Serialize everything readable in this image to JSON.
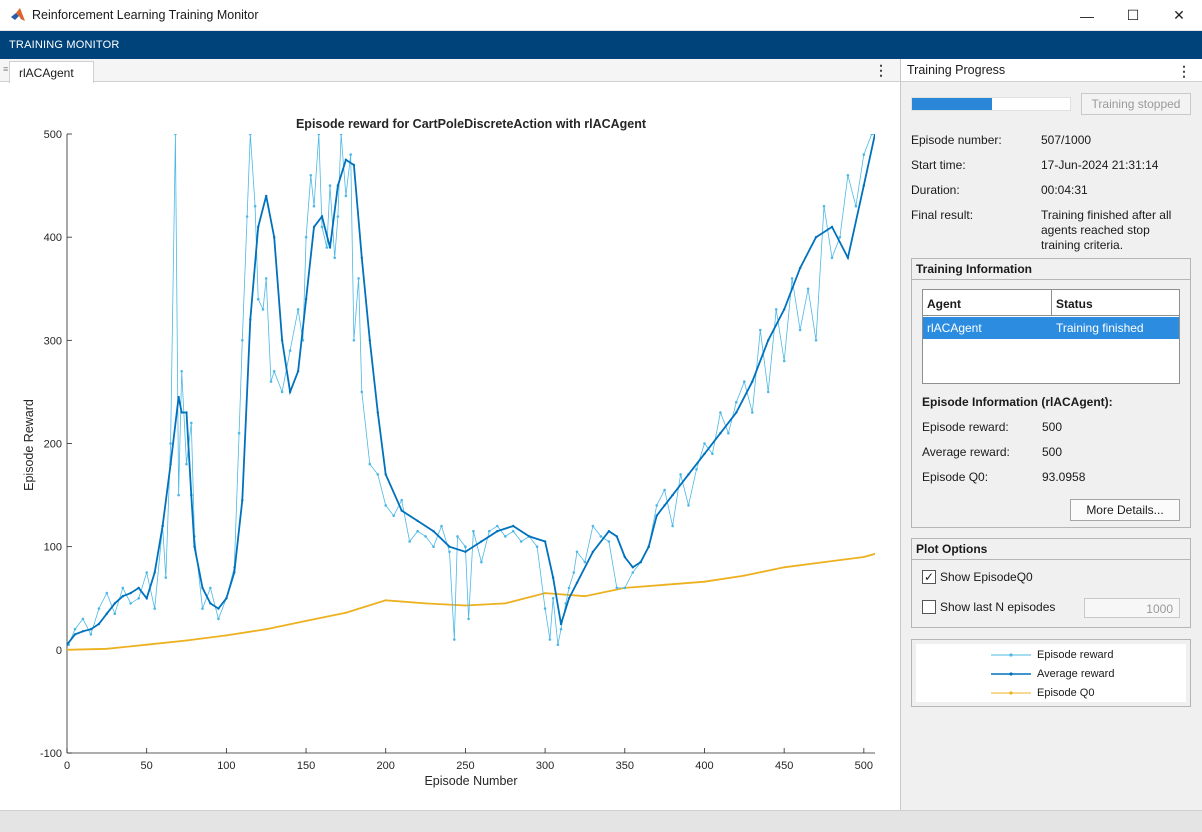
{
  "window": {
    "title": "Reinforcement Learning Training Monitor",
    "minimize": "—",
    "maximize": "☐",
    "close": "✕"
  },
  "toolstrip": {
    "tab": "TRAINING MONITOR"
  },
  "doc_tab": {
    "label": "rlACAgent"
  },
  "right_panel": {
    "header": "Training Progress",
    "progress": 0.507,
    "stop_button": "Training stopped",
    "info": [
      {
        "label": "Episode number:",
        "value": "507/1000"
      },
      {
        "label": "Start time:",
        "value": "17-Jun-2024 21:31:14"
      },
      {
        "label": "Duration:",
        "value": "00:04:31"
      },
      {
        "label": "Final result:",
        "value": "Training finished after all agents reached stop training criteria."
      }
    ],
    "training_information": {
      "title": "Training Information",
      "columns": [
        "Agent",
        "Status"
      ],
      "rows": [
        {
          "agent": "rlACAgent",
          "status": "Training finished"
        }
      ],
      "episode_title": "Episode Information (rlACAgent):",
      "episode_info": [
        {
          "label": "Episode reward:",
          "value": "500"
        },
        {
          "label": "Average reward:",
          "value": "500"
        },
        {
          "label": "Episode Q0:",
          "value": "93.0958"
        }
      ],
      "more_details": "More Details..."
    },
    "plot_options": {
      "title": "Plot Options",
      "show_q0": {
        "label": "Show EpisodeQ0",
        "checked": true
      },
      "show_last_n": {
        "label": "Show last N episodes",
        "checked": false
      },
      "n_value": "1000"
    },
    "legend": [
      {
        "name": "Episode reward",
        "color": "#4db8e6"
      },
      {
        "name": "Average reward",
        "color": "#0072bd"
      },
      {
        "name": "Episode Q0",
        "color": "#edb120"
      }
    ]
  },
  "chart_data": {
    "type": "line",
    "title": "Episode reward for CartPoleDiscreteAction with rlACAgent",
    "xlabel": "Episode Number",
    "ylabel": "Episode Reward",
    "xlim": [
      0,
      507
    ],
    "ylim": [
      -100,
      500
    ],
    "xticks": [
      0,
      50,
      100,
      150,
      200,
      250,
      300,
      350,
      400,
      450,
      500
    ],
    "yticks": [
      -100,
      0,
      100,
      200,
      300,
      400,
      500
    ],
    "grid": false,
    "series": [
      {
        "name": "Episode reward",
        "color": "#4db8e6",
        "x": [
          1,
          5,
          10,
          15,
          20,
          25,
          30,
          35,
          40,
          45,
          50,
          55,
          60,
          62,
          65,
          68,
          70,
          72,
          75,
          78,
          80,
          85,
          90,
          95,
          100,
          105,
          108,
          110,
          113,
          115,
          118,
          120,
          123,
          125,
          128,
          130,
          135,
          140,
          145,
          148,
          150,
          153,
          155,
          158,
          160,
          163,
          165,
          168,
          170,
          172,
          175,
          178,
          180,
          183,
          185,
          190,
          195,
          200,
          205,
          210,
          215,
          220,
          225,
          230,
          235,
          240,
          243,
          245,
          250,
          252,
          255,
          260,
          265,
          270,
          275,
          280,
          285,
          290,
          295,
          300,
          303,
          305,
          308,
          310,
          313,
          315,
          318,
          320,
          325,
          330,
          335,
          340,
          345,
          350,
          355,
          360,
          365,
          370,
          375,
          380,
          385,
          390,
          395,
          400,
          405,
          410,
          415,
          420,
          425,
          430,
          435,
          440,
          445,
          450,
          455,
          460,
          465,
          470,
          475,
          480,
          485,
          490,
          495,
          500,
          505,
          507
        ],
        "y": [
          5,
          20,
          30,
          15,
          40,
          55,
          35,
          60,
          45,
          50,
          75,
          40,
          120,
          70,
          200,
          500,
          150,
          270,
          180,
          220,
          110,
          40,
          60,
          30,
          50,
          80,
          210,
          300,
          420,
          500,
          430,
          340,
          330,
          360,
          260,
          270,
          250,
          290,
          330,
          300,
          400,
          460,
          430,
          500,
          410,
          390,
          450,
          380,
          420,
          500,
          440,
          480,
          300,
          360,
          250,
          180,
          170,
          140,
          130,
          145,
          105,
          115,
          110,
          100,
          120,
          95,
          10,
          110,
          100,
          30,
          115,
          85,
          115,
          120,
          110,
          115,
          105,
          110,
          100,
          40,
          10,
          50,
          5,
          20,
          45,
          60,
          75,
          95,
          85,
          120,
          110,
          105,
          60,
          60,
          75,
          85,
          100,
          140,
          155,
          120,
          170,
          140,
          175,
          200,
          190,
          230,
          210,
          240,
          260,
          230,
          310,
          250,
          330,
          280,
          360,
          310,
          350,
          300,
          430,
          380,
          400,
          460,
          430,
          480,
          500,
          500
        ]
      },
      {
        "name": "Average reward",
        "color": "#0072bd",
        "x": [
          0,
          5,
          10,
          15,
          20,
          25,
          30,
          35,
          40,
          45,
          50,
          55,
          60,
          65,
          70,
          72,
          75,
          78,
          80,
          85,
          90,
          95,
          100,
          105,
          110,
          115,
          120,
          125,
          130,
          135,
          140,
          145,
          150,
          155,
          160,
          165,
          170,
          175,
          180,
          185,
          190,
          195,
          200,
          210,
          220,
          230,
          240,
          250,
          260,
          270,
          280,
          290,
          300,
          305,
          310,
          315,
          320,
          330,
          340,
          345,
          350,
          355,
          360,
          365,
          370,
          375,
          380,
          390,
          400,
          410,
          420,
          430,
          440,
          450,
          460,
          470,
          480,
          490,
          500,
          507
        ],
        "y": [
          5,
          15,
          18,
          20,
          25,
          35,
          45,
          52,
          55,
          60,
          50,
          75,
          120,
          180,
          245,
          230,
          230,
          150,
          100,
          60,
          45,
          40,
          50,
          75,
          145,
          320,
          410,
          440,
          400,
          300,
          250,
          270,
          340,
          410,
          420,
          390,
          450,
          475,
          470,
          380,
          300,
          230,
          170,
          135,
          125,
          115,
          100,
          95,
          105,
          115,
          120,
          110,
          105,
          70,
          25,
          50,
          65,
          95,
          115,
          110,
          90,
          80,
          85,
          100,
          130,
          140,
          150,
          170,
          190,
          210,
          230,
          260,
          300,
          330,
          370,
          400,
          410,
          380,
          450,
          500
        ]
      },
      {
        "name": "Episode Q0",
        "color": "#edb120",
        "x": [
          0,
          25,
          50,
          75,
          100,
          125,
          150,
          175,
          200,
          225,
          250,
          275,
          300,
          325,
          350,
          375,
          400,
          425,
          450,
          475,
          500,
          507
        ],
        "y": [
          0,
          1,
          5,
          9,
          14,
          20,
          28,
          36,
          48,
          45,
          43,
          45,
          55,
          52,
          60,
          63,
          66,
          72,
          80,
          85,
          90,
          93
        ]
      }
    ]
  }
}
